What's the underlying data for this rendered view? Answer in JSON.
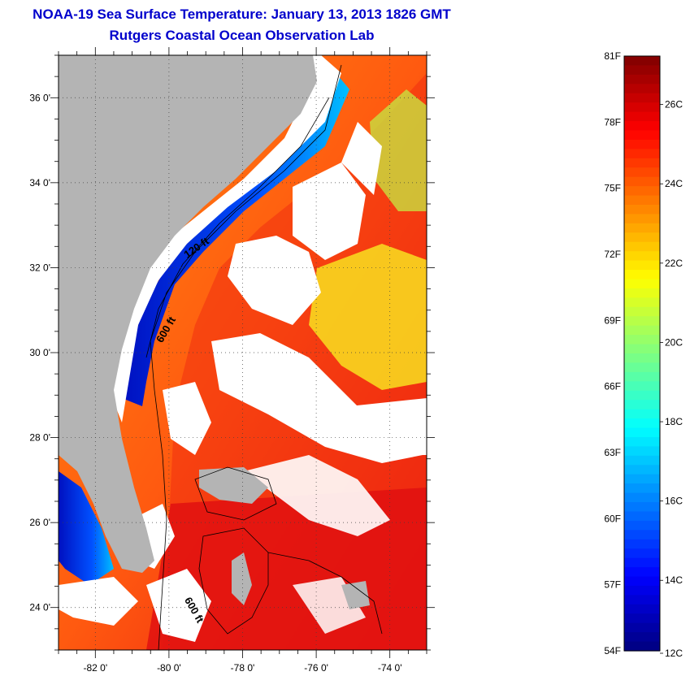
{
  "header": {
    "title": "NOAA-19 Sea Surface Temperature:  January 13, 2013 1826 GMT",
    "subtitle": "Rutgers Coastal Ocean Observation Lab"
  },
  "map": {
    "lon_range": [
      -83,
      -73
    ],
    "lat_range": [
      23,
      37
    ],
    "x_ticks": [
      {
        "value": -82,
        "label": "-82 0'"
      },
      {
        "value": -80,
        "label": "-80 0'"
      },
      {
        "value": -78,
        "label": "-78 0'"
      },
      {
        "value": -76,
        "label": "-76 0'"
      },
      {
        "value": -74,
        "label": "-74 0'"
      }
    ],
    "y_ticks": [
      {
        "value": 24,
        "label": "24 0'"
      },
      {
        "value": 26,
        "label": "26 0'"
      },
      {
        "value": 28,
        "label": "28 0'"
      },
      {
        "value": 30,
        "label": "30 0'"
      },
      {
        "value": 32,
        "label": "32 0'"
      },
      {
        "value": 34,
        "label": "34 0'"
      },
      {
        "value": 36,
        "label": "36 0'"
      }
    ],
    "contour_labels": [
      {
        "text": "120 ft",
        "lon": -79.2,
        "lat": 32.4,
        "angle": -35
      },
      {
        "text": "600 ft",
        "lon": -80.0,
        "lat": 30.5,
        "angle": -60
      },
      {
        "text": "600 ft",
        "lon": -79.4,
        "lat": 23.9,
        "angle": 60
      }
    ],
    "colors": {
      "land": "#b4b4b4",
      "cloud": "#ffffff",
      "grid": "#404040"
    }
  },
  "colorbar": {
    "range_f": [
      54,
      81
    ],
    "fahrenheit_labels": [
      "81F",
      "78F",
      "75F",
      "72F",
      "69F",
      "66F",
      "63F",
      "60F",
      "57F",
      "54F"
    ],
    "celsius_labels": [
      {
        "value": 12,
        "label": "12C"
      },
      {
        "value": 14,
        "label": "14C"
      },
      {
        "value": 16,
        "label": "16C"
      },
      {
        "value": 18,
        "label": "18C"
      },
      {
        "value": 20,
        "label": "20C"
      },
      {
        "value": 22,
        "label": "22C"
      },
      {
        "value": 24,
        "label": "24C"
      },
      {
        "value": 26,
        "label": "26C"
      }
    ],
    "colormap": "jet"
  }
}
